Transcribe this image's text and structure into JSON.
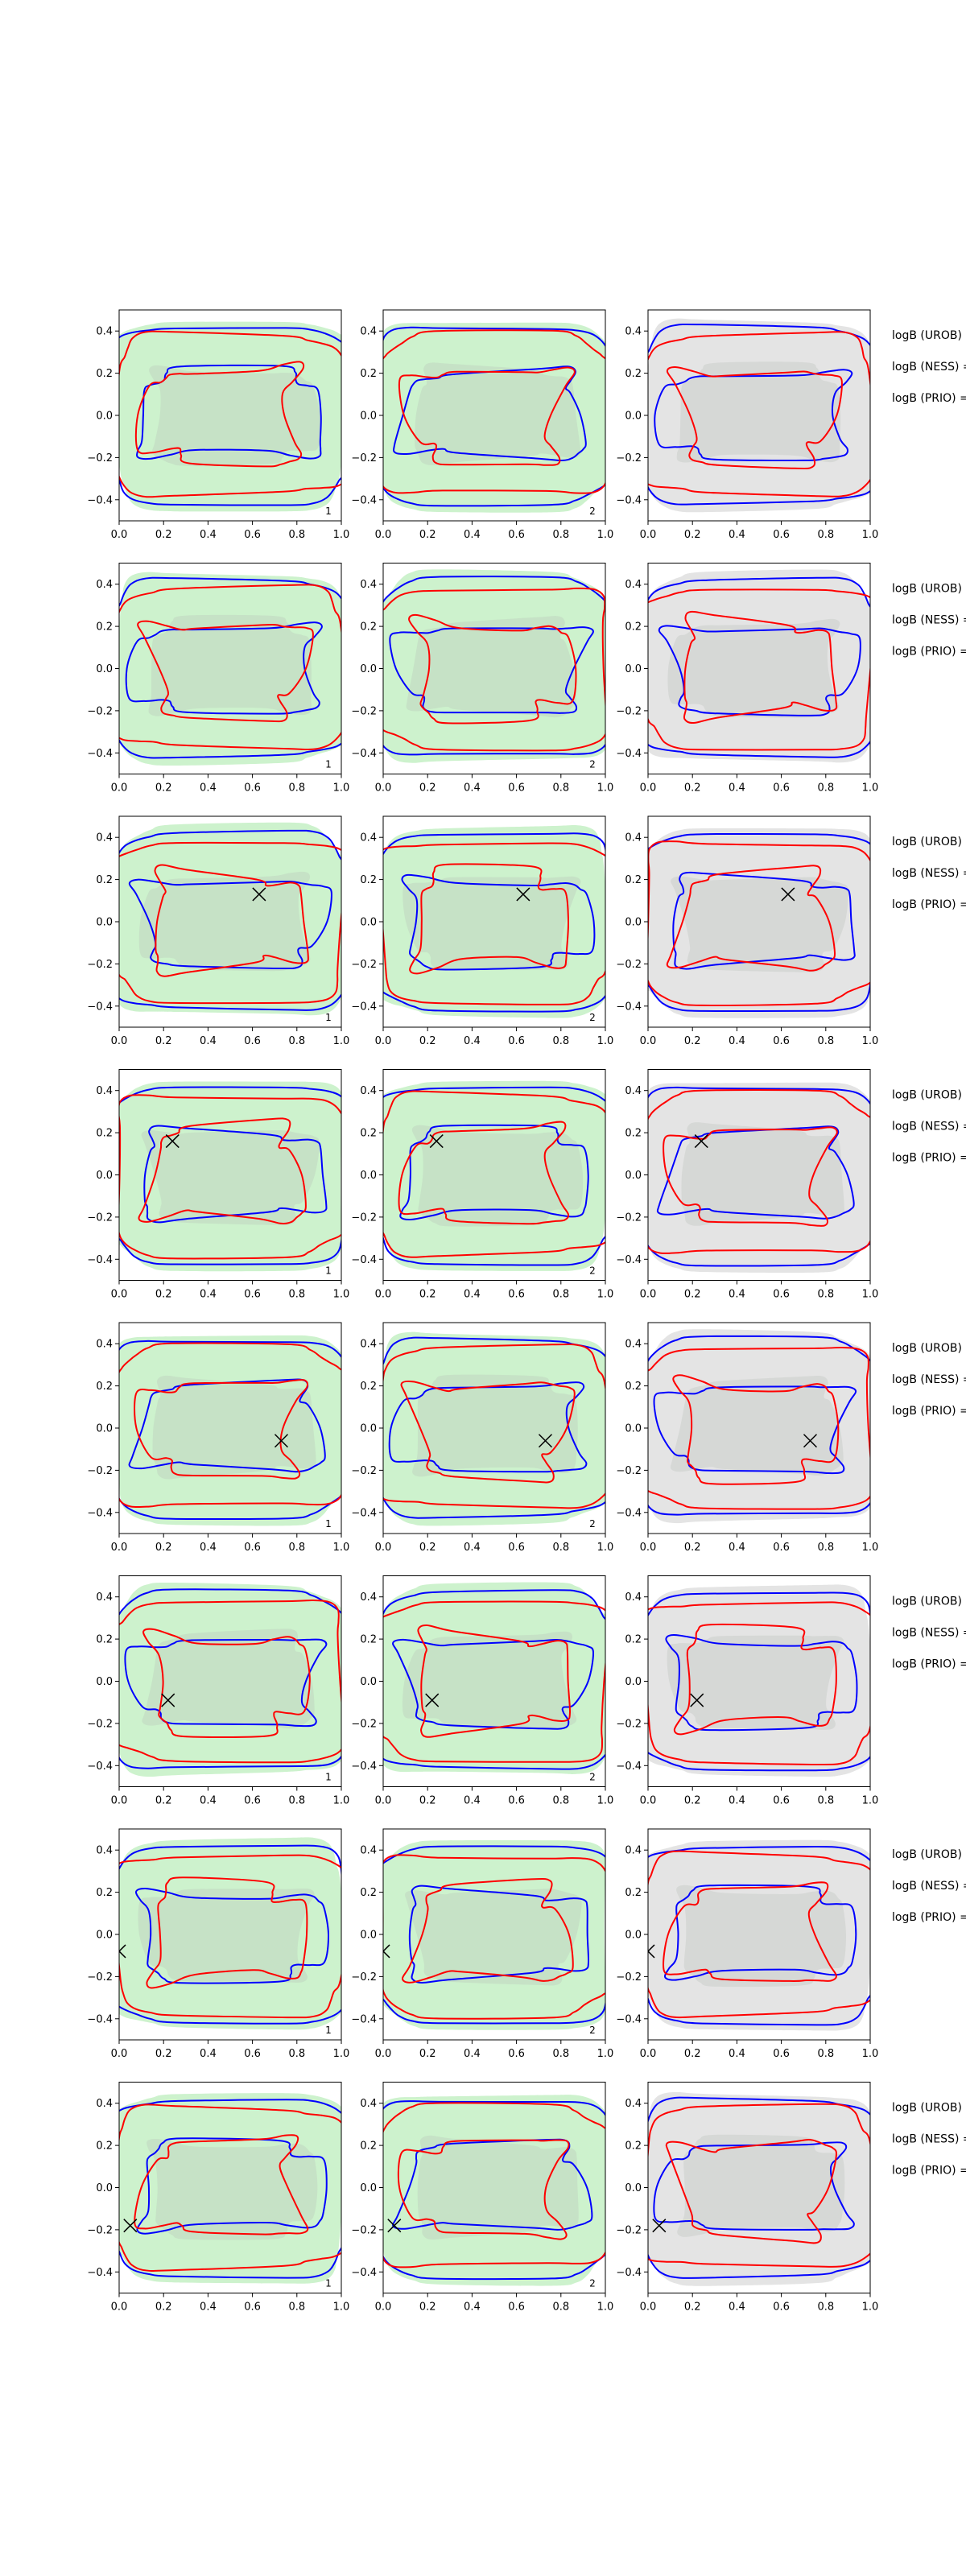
{
  "colors": {
    "green_fill": "#cdf2cd",
    "grey_fill": "#e4e4e4",
    "shade": "#b4bab4",
    "blue": "#0000ff",
    "red": "#ff0000",
    "marker": "#000000"
  },
  "logb_labels": [
    "logB (UROB) =",
    "logB (NESS) =",
    "logB (PRIO) ="
  ],
  "chart_data": {
    "type": "contour-grid",
    "rows": 8,
    "cols": 3,
    "xlim": [
      0,
      1
    ],
    "ylim": [
      -0.5,
      0.5
    ],
    "x_ticks": [
      "0.0",
      "0.2",
      "0.4",
      "0.6",
      "0.8",
      "1.0"
    ],
    "x_tick_values": [
      0,
      0.2,
      0.4,
      0.6,
      0.8,
      1.0
    ],
    "y_ticks": [
      "0.4",
      "0.2",
      "0.0",
      "−0.2",
      "−0.4"
    ],
    "y_tick_values": [
      0.4,
      0.2,
      0.0,
      -0.2,
      -0.4
    ],
    "panel_numbers": [
      "1",
      "2",
      ""
    ],
    "panel_backgrounds": [
      "green",
      "green",
      "grey"
    ],
    "markers": [
      null,
      null,
      {
        "x": 0.63,
        "y": 0.13
      },
      {
        "x": 0.24,
        "y": 0.16
      },
      {
        "x": 0.73,
        "y": -0.06
      },
      {
        "x": 0.22,
        "y": -0.09
      },
      {
        "x": 0.0,
        "y": -0.08
      },
      {
        "x": 0.05,
        "y": -0.18
      }
    ]
  }
}
